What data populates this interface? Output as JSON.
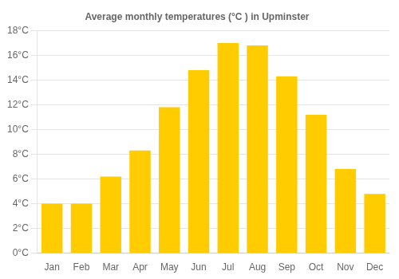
{
  "chart_data": {
    "type": "bar",
    "title": "Average monthly temperatures (°C ) in Upminster",
    "categories": [
      "Jan",
      "Feb",
      "Mar",
      "Apr",
      "May",
      "Jun",
      "Jul",
      "Aug",
      "Sep",
      "Oct",
      "Nov",
      "Dec"
    ],
    "values": [
      4.0,
      4.0,
      6.2,
      8.3,
      11.8,
      14.8,
      17.0,
      16.8,
      14.3,
      11.2,
      6.8,
      4.8
    ],
    "color": "#FFCC00",
    "ylim": [
      0,
      18
    ],
    "yticks": [
      {
        "value": 0,
        "label": "0°C"
      },
      {
        "value": 2,
        "label": "2°C"
      },
      {
        "value": 4,
        "label": "4°C"
      },
      {
        "value": 6,
        "label": "6°C"
      },
      {
        "value": 8,
        "label": "8°C"
      },
      {
        "value": 10,
        "label": "10°C"
      },
      {
        "value": 12,
        "label": "12°C"
      },
      {
        "value": 14,
        "label": "14°C"
      },
      {
        "value": 16,
        "label": "16°C"
      },
      {
        "value": 18,
        "label": "18°C"
      }
    ],
    "grid": true
  }
}
